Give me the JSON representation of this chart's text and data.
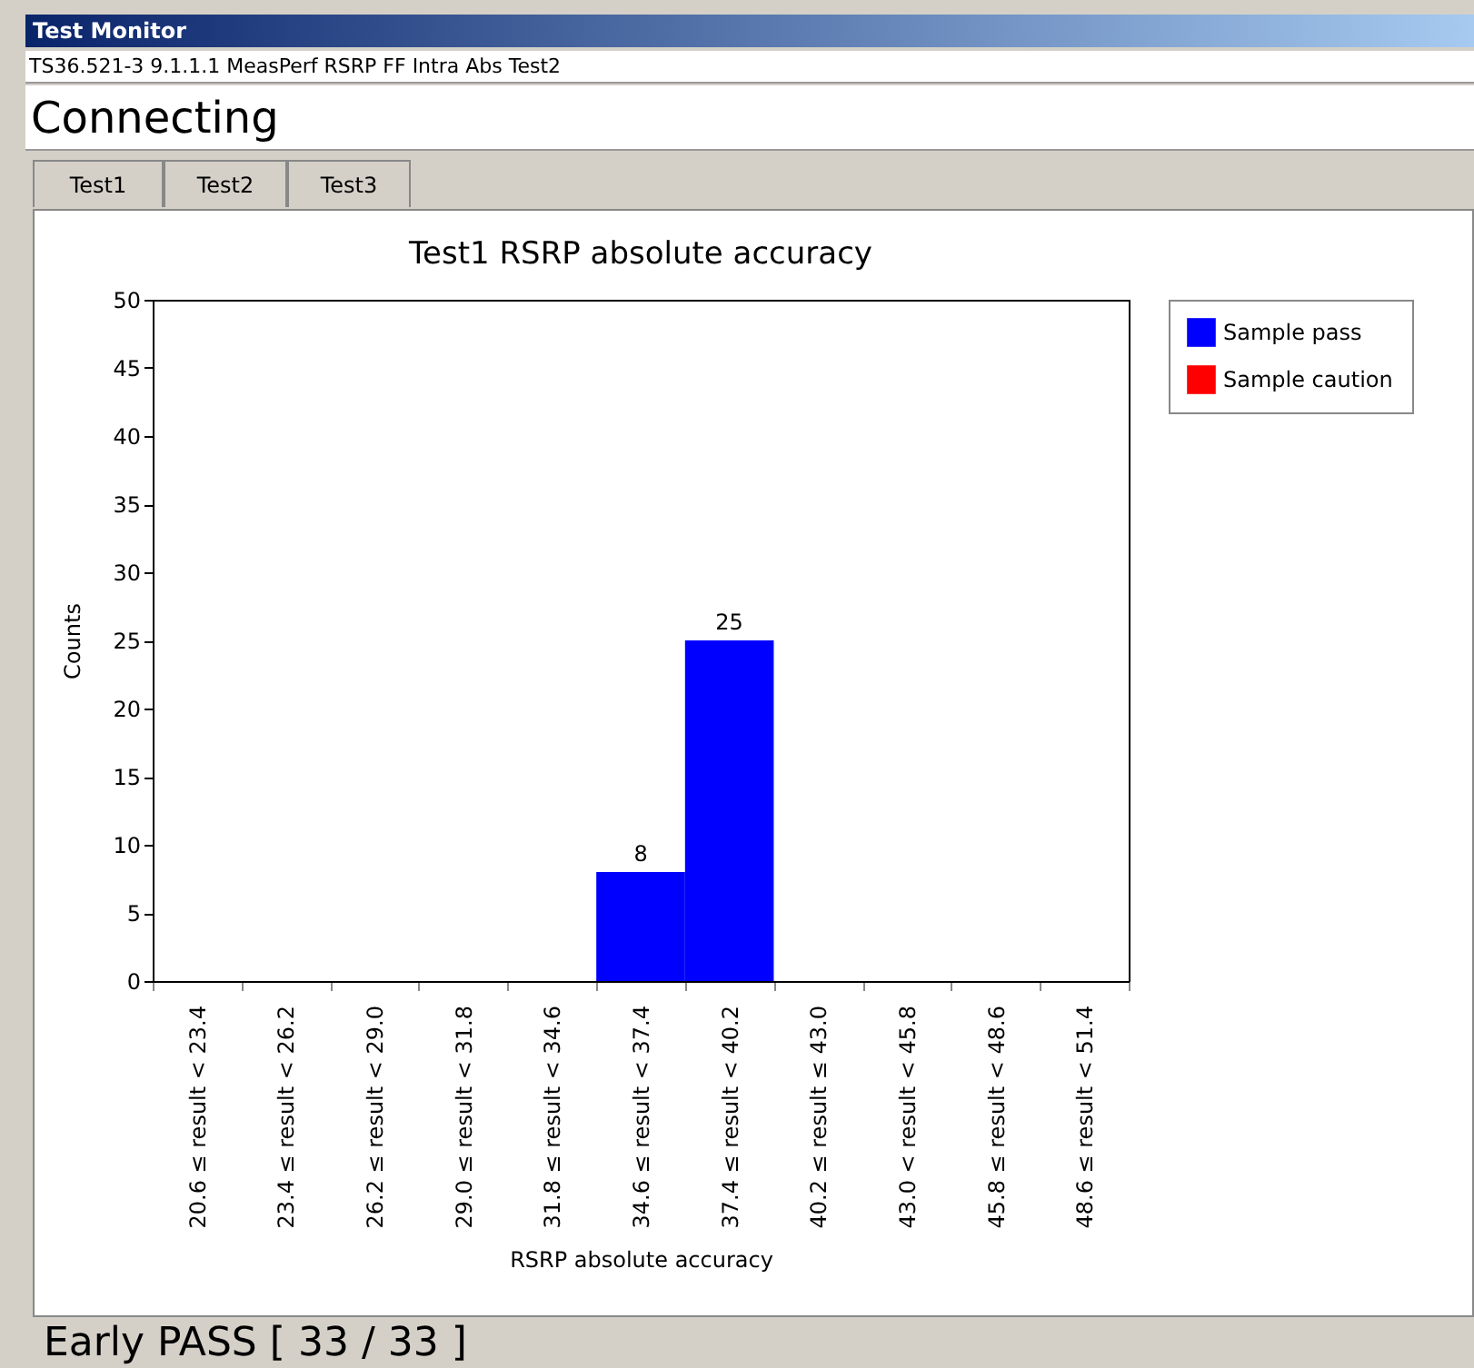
{
  "chart_data": {
    "type": "bar",
    "title": "Test1 RSRP absolute accuracy",
    "xlabel": "RSRP absolute accuracy",
    "ylabel": "Counts",
    "categories": [
      "20.6 ≤ result < 23.4",
      "23.4 ≤ result < 26.2",
      "26.2 ≤ result < 29.0",
      "29.0 ≤ result < 31.8",
      "31.8 ≤ result < 34.6",
      "34.6 ≤ result < 37.4",
      "37.4 ≤ result < 40.2",
      "40.2 ≤ result ≤ 43.0",
      "43.0 < result < 45.8",
      "45.8 ≤ result < 48.6",
      "48.6 ≤ result < 51.4"
    ],
    "series": [
      {
        "name": "Sample pass",
        "color": "#0000ff",
        "values": [
          0,
          0,
          0,
          0,
          0,
          8,
          25,
          0,
          0,
          0,
          0
        ],
        "value_labels": [
          null,
          null,
          null,
          null,
          null,
          "8",
          "25",
          null,
          null,
          null,
          null
        ]
      },
      {
        "name": "Sample caution",
        "color": "#ff0000",
        "values": [
          0,
          0,
          0,
          0,
          0,
          0,
          0,
          0,
          0,
          0,
          0
        ]
      }
    ],
    "ylim": [
      0,
      50
    ],
    "yticks": [
      0,
      5,
      10,
      15,
      20,
      25,
      30,
      35,
      40,
      45,
      50
    ],
    "grid": false,
    "legend": "right",
    "annotations": [
      "Test Monitor",
      "TS36.521-3 9.1.1.1 MeasPerf RSRP FF Intra Abs Test2",
      "Connecting",
      "Test1",
      "Test2",
      "Test3",
      "Early PASS [ 33 / 33 ]"
    ]
  }
}
